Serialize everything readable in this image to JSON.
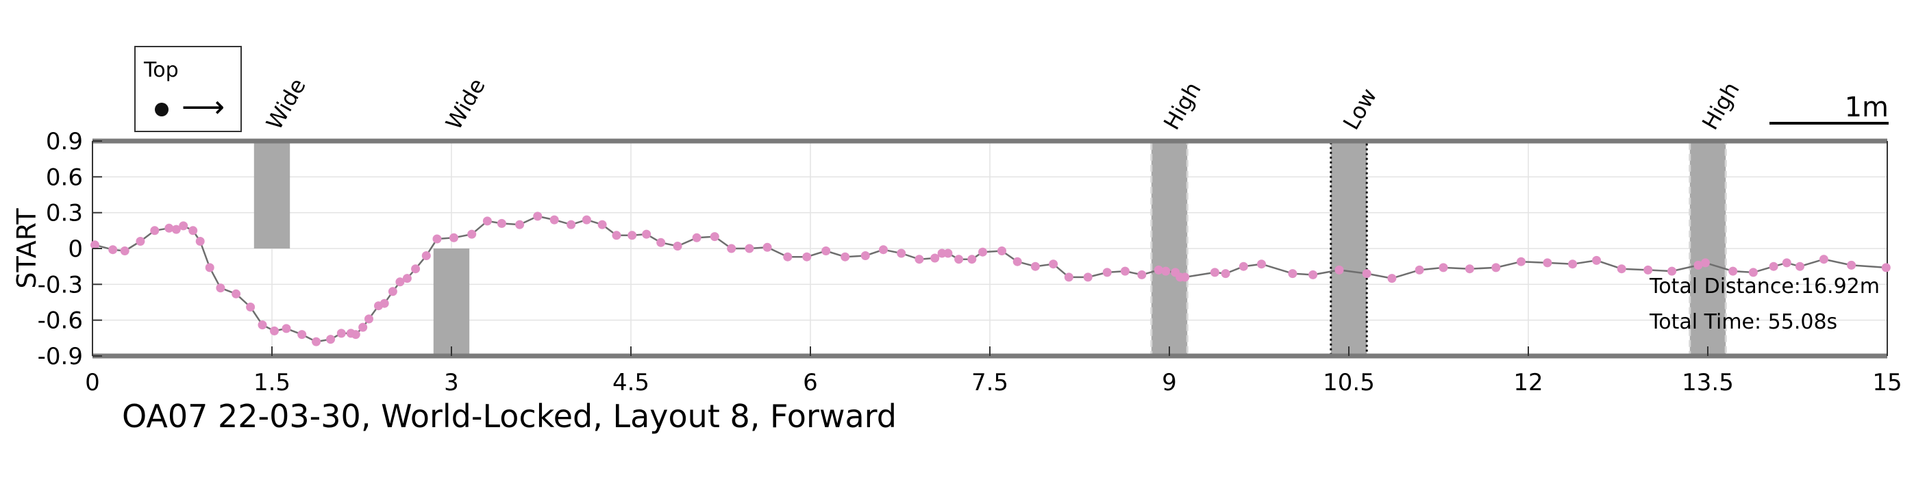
{
  "chart_data": {
    "type": "line",
    "title": "OA07 22-03-30, World-Locked, Layout 8, Forward",
    "xlabel": "",
    "ylabel": "START",
    "xlim": [
      0,
      15
    ],
    "ylim": [
      -0.9,
      0.9
    ],
    "xticks": [
      0,
      1.5,
      3,
      4.5,
      6,
      7.5,
      9,
      10.5,
      12,
      13.5,
      15
    ],
    "yticks": [
      0.9,
      0.6,
      0.3,
      0,
      -0.3,
      -0.6,
      -0.9
    ],
    "grid": true,
    "legend": {
      "placement": "top-left",
      "title": "Top",
      "arrow_glyph": "⟶"
    },
    "scale_bar": {
      "label": "1m",
      "length": 1
    },
    "info": {
      "total_distance": "Total Distance:16.92m",
      "total_time": "Total Time: 55.08s"
    },
    "colors": {
      "path_line": "#6e6e6e",
      "points": "#e08fc4",
      "obstacle": "#a9a9a9",
      "frame": "#7a7a7a",
      "grid": "#e3e3e3"
    },
    "obstacles": [
      {
        "label": "Wide",
        "x": 1.35,
        "width": 0.3,
        "y0": 0,
        "y1": 0.9,
        "style": "solid"
      },
      {
        "label": "Wide",
        "x": 2.85,
        "width": 0.3,
        "y0": -0.9,
        "y1": 0,
        "style": "solid"
      },
      {
        "label": "High",
        "x": 8.85,
        "width": 0.3,
        "y0": -0.9,
        "y1": 0.9,
        "style": "dashed"
      },
      {
        "label": "Low",
        "x": 10.35,
        "width": 0.3,
        "y0": -0.9,
        "y1": 0.9,
        "style": "dotted"
      },
      {
        "label": "High",
        "x": 13.35,
        "width": 0.3,
        "y0": -0.9,
        "y1": 0.9,
        "style": "dashed"
      }
    ],
    "series": [
      {
        "x": [
          0.02,
          0.17,
          0.27,
          0.4,
          0.52,
          0.64,
          0.7,
          0.76,
          0.84,
          0.9,
          0.98,
          1.07,
          1.2,
          1.32,
          1.42,
          1.52,
          1.62,
          1.75,
          1.87,
          1.99,
          2.08,
          2.16,
          2.2,
          2.26,
          2.31,
          2.39,
          2.44,
          2.51,
          2.57,
          2.63,
          2.7,
          2.79,
          2.88,
          3.02,
          3.17,
          3.3,
          3.42,
          3.57,
          3.72,
          3.86,
          4.0,
          4.13,
          4.26,
          4.38,
          4.51,
          4.63,
          4.75,
          4.89,
          5.05,
          5.2,
          5.34,
          5.49,
          5.64,
          5.81,
          5.97,
          6.13,
          6.29,
          6.46,
          6.61,
          6.76,
          6.91,
          7.04,
          7.1,
          7.15,
          7.24,
          7.35,
          7.44,
          7.6,
          7.73,
          7.88,
          8.03,
          8.16,
          8.32,
          8.48,
          8.63,
          8.77,
          8.91,
          8.97,
          9.05,
          9.09,
          9.13,
          9.38,
          9.47,
          9.62,
          9.77,
          10.03,
          10.2,
          10.42,
          10.65,
          10.86,
          11.09,
          11.29,
          11.51,
          11.73,
          11.94,
          12.16,
          12.37,
          12.57,
          12.78,
          13.0,
          13.2,
          13.42,
          13.48,
          13.71,
          13.88,
          14.05,
          14.16,
          14.27,
          14.47,
          14.7,
          14.99
        ],
        "y": [
          0.03,
          -0.01,
          -0.02,
          0.06,
          0.15,
          0.17,
          0.16,
          0.19,
          0.15,
          0.06,
          -0.16,
          -0.33,
          -0.38,
          -0.49,
          -0.64,
          -0.69,
          -0.67,
          -0.72,
          -0.78,
          -0.76,
          -0.71,
          -0.71,
          -0.72,
          -0.66,
          -0.59,
          -0.48,
          -0.46,
          -0.36,
          -0.28,
          -0.25,
          -0.17,
          -0.06,
          0.08,
          0.09,
          0.12,
          0.23,
          0.21,
          0.2,
          0.27,
          0.24,
          0.2,
          0.24,
          0.2,
          0.11,
          0.11,
          0.12,
          0.05,
          0.02,
          0.09,
          0.1,
          0.0,
          0.0,
          0.01,
          -0.07,
          -0.07,
          -0.02,
          -0.07,
          -0.06,
          -0.01,
          -0.04,
          -0.09,
          -0.08,
          -0.04,
          -0.04,
          -0.09,
          -0.09,
          -0.03,
          -0.02,
          -0.11,
          -0.15,
          -0.13,
          -0.24,
          -0.24,
          -0.2,
          -0.19,
          -0.22,
          -0.18,
          -0.19,
          -0.2,
          -0.24,
          -0.24,
          -0.2,
          -0.21,
          -0.15,
          -0.13,
          -0.21,
          -0.22,
          -0.18,
          -0.21,
          -0.25,
          -0.18,
          -0.16,
          -0.17,
          -0.16,
          -0.11,
          -0.12,
          -0.13,
          -0.1,
          -0.17,
          -0.18,
          -0.19,
          -0.14,
          -0.12,
          -0.19,
          -0.2,
          -0.15,
          -0.12,
          -0.15,
          -0.09,
          -0.14,
          -0.16
        ]
      }
    ]
  }
}
